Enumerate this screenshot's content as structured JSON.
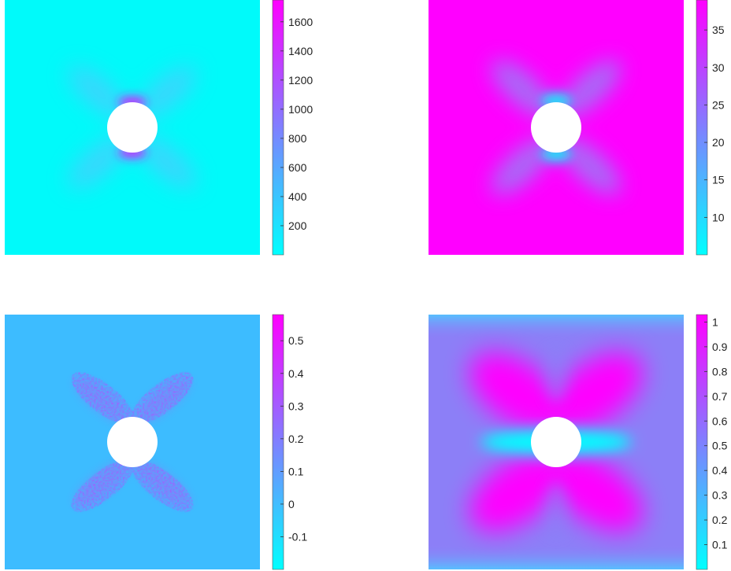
{
  "chart_data": [
    {
      "type": "heatmap",
      "title": "",
      "field_background": "#00fafa",
      "hole_color": "#ffffff",
      "pattern": "x-shaped lobes at ±45° with concentrated band just above and below the circular hole",
      "colorbar": {
        "colors": [
          "#00ffff",
          "#ff00ff"
        ],
        "range": [
          0,
          1750
        ],
        "ticks": [
          200,
          400,
          600,
          800,
          1000,
          1200,
          1400,
          1600
        ],
        "tick_labels": [
          "200",
          "400",
          "600",
          "800",
          "1000",
          "1200",
          "1400",
          "1600"
        ]
      }
    },
    {
      "type": "heatmap",
      "title": "",
      "field_background": "#ff00ff",
      "hole_color": "#ffffff",
      "pattern": "lower values in x-shaped lobes at ±45°, minimum just above and below the hole",
      "colorbar": {
        "colors": [
          "#00ffff",
          "#ff00ff"
        ],
        "range": [
          5,
          39
        ],
        "ticks": [
          10,
          15,
          20,
          25,
          30,
          35
        ],
        "tick_labels": [
          "10",
          "15",
          "20",
          "25",
          "30",
          "35"
        ]
      }
    },
    {
      "type": "heatmap",
      "title": "",
      "field_background": "#3dbcff",
      "hole_color": "#ffffff",
      "pattern": "speckled x-shaped lobes at ±45° with higher values near hole top and bottom",
      "colorbar": {
        "colors": [
          "#00ffff",
          "#ff00ff"
        ],
        "range": [
          -0.2,
          0.58
        ],
        "ticks": [
          -0.1,
          0,
          0.1,
          0.2,
          0.3,
          0.4,
          0.5
        ],
        "tick_labels": [
          "-0.1",
          "0",
          "0.1",
          "0.2",
          "0.3",
          "0.4",
          "0.5"
        ]
      }
    },
    {
      "type": "heatmap",
      "title": "",
      "field_background": "#8c7ff7",
      "hole_color": "#ffffff",
      "pattern": "large saturated x-shaped lobes, low values horizontally beside the hole and along top and bottom edges",
      "colorbar": {
        "colors": [
          "#00ffff",
          "#ff00ff"
        ],
        "range": [
          0,
          1.03
        ],
        "ticks": [
          0.1,
          0.2,
          0.3,
          0.4,
          0.5,
          0.6,
          0.7,
          0.8,
          0.9,
          1
        ],
        "tick_labels": [
          "0.1",
          "0.2",
          "0.3",
          "0.4",
          "0.5",
          "0.6",
          "0.7",
          "0.8",
          "0.9",
          "1"
        ]
      }
    }
  ]
}
